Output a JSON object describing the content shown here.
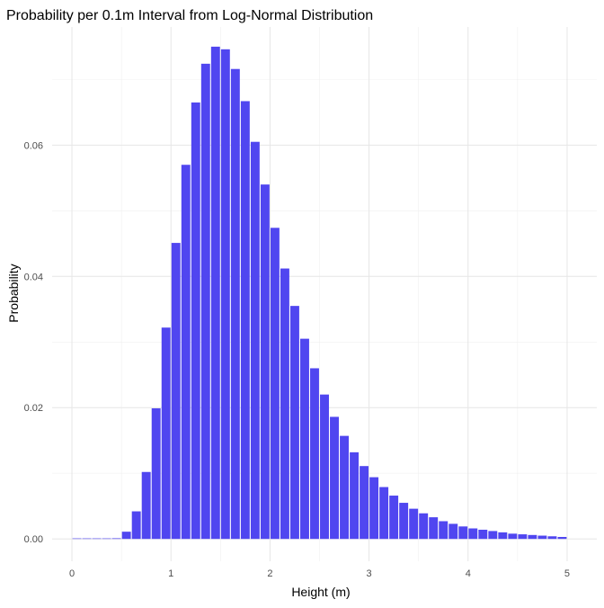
{
  "chart_data": {
    "type": "bar",
    "title": "Probability per 0.1m Interval from Log-Normal Distribution",
    "xlabel": "Height (m)",
    "ylabel": "Probability",
    "xlim": [
      -0.2,
      5.3
    ],
    "ylim": [
      -0.0034,
      0.078
    ],
    "x_ticks": [
      0,
      1,
      2,
      3,
      4,
      5
    ],
    "y_ticks": [
      0.0,
      0.02,
      0.04,
      0.06
    ],
    "y_tick_labels": [
      "0.00",
      "0.02",
      "0.04",
      "0.06"
    ],
    "grid": true,
    "bar_color": "#5046f0",
    "bin_width": 0.1,
    "x": [
      0.0,
      0.1,
      0.2,
      0.3,
      0.4,
      0.5,
      0.6,
      0.7,
      0.8,
      0.9,
      1.0,
      1.1,
      1.2,
      1.3,
      1.4,
      1.5,
      1.6,
      1.7,
      1.8,
      1.9,
      2.0,
      2.1,
      2.2,
      2.3,
      2.4,
      2.5,
      2.6,
      2.7,
      2.8,
      2.9,
      3.0,
      3.1,
      3.2,
      3.3,
      3.4,
      3.5,
      3.6,
      3.7,
      3.8,
      3.9,
      4.0,
      4.1,
      4.2,
      4.3,
      4.4,
      4.5,
      4.6,
      4.7,
      4.8,
      4.9
    ],
    "values": [
      0.0,
      0.0,
      0.0,
      0.0,
      0.0001,
      0.0011,
      0.0042,
      0.0102,
      0.0199,
      0.0322,
      0.0451,
      0.057,
      0.0665,
      0.0724,
      0.075,
      0.0746,
      0.0716,
      0.0667,
      0.0605,
      0.054,
      0.0474,
      0.0412,
      0.0355,
      0.0305,
      0.026,
      0.022,
      0.0186,
      0.0157,
      0.0132,
      0.0111,
      0.0094,
      0.0079,
      0.0066,
      0.0055,
      0.0046,
      0.0039,
      0.0033,
      0.0027,
      0.0023,
      0.0019,
      0.0016,
      0.0014,
      0.0012,
      0.001,
      0.0008,
      0.0007,
      0.0006,
      0.0005,
      0.0004,
      0.0003
    ]
  }
}
